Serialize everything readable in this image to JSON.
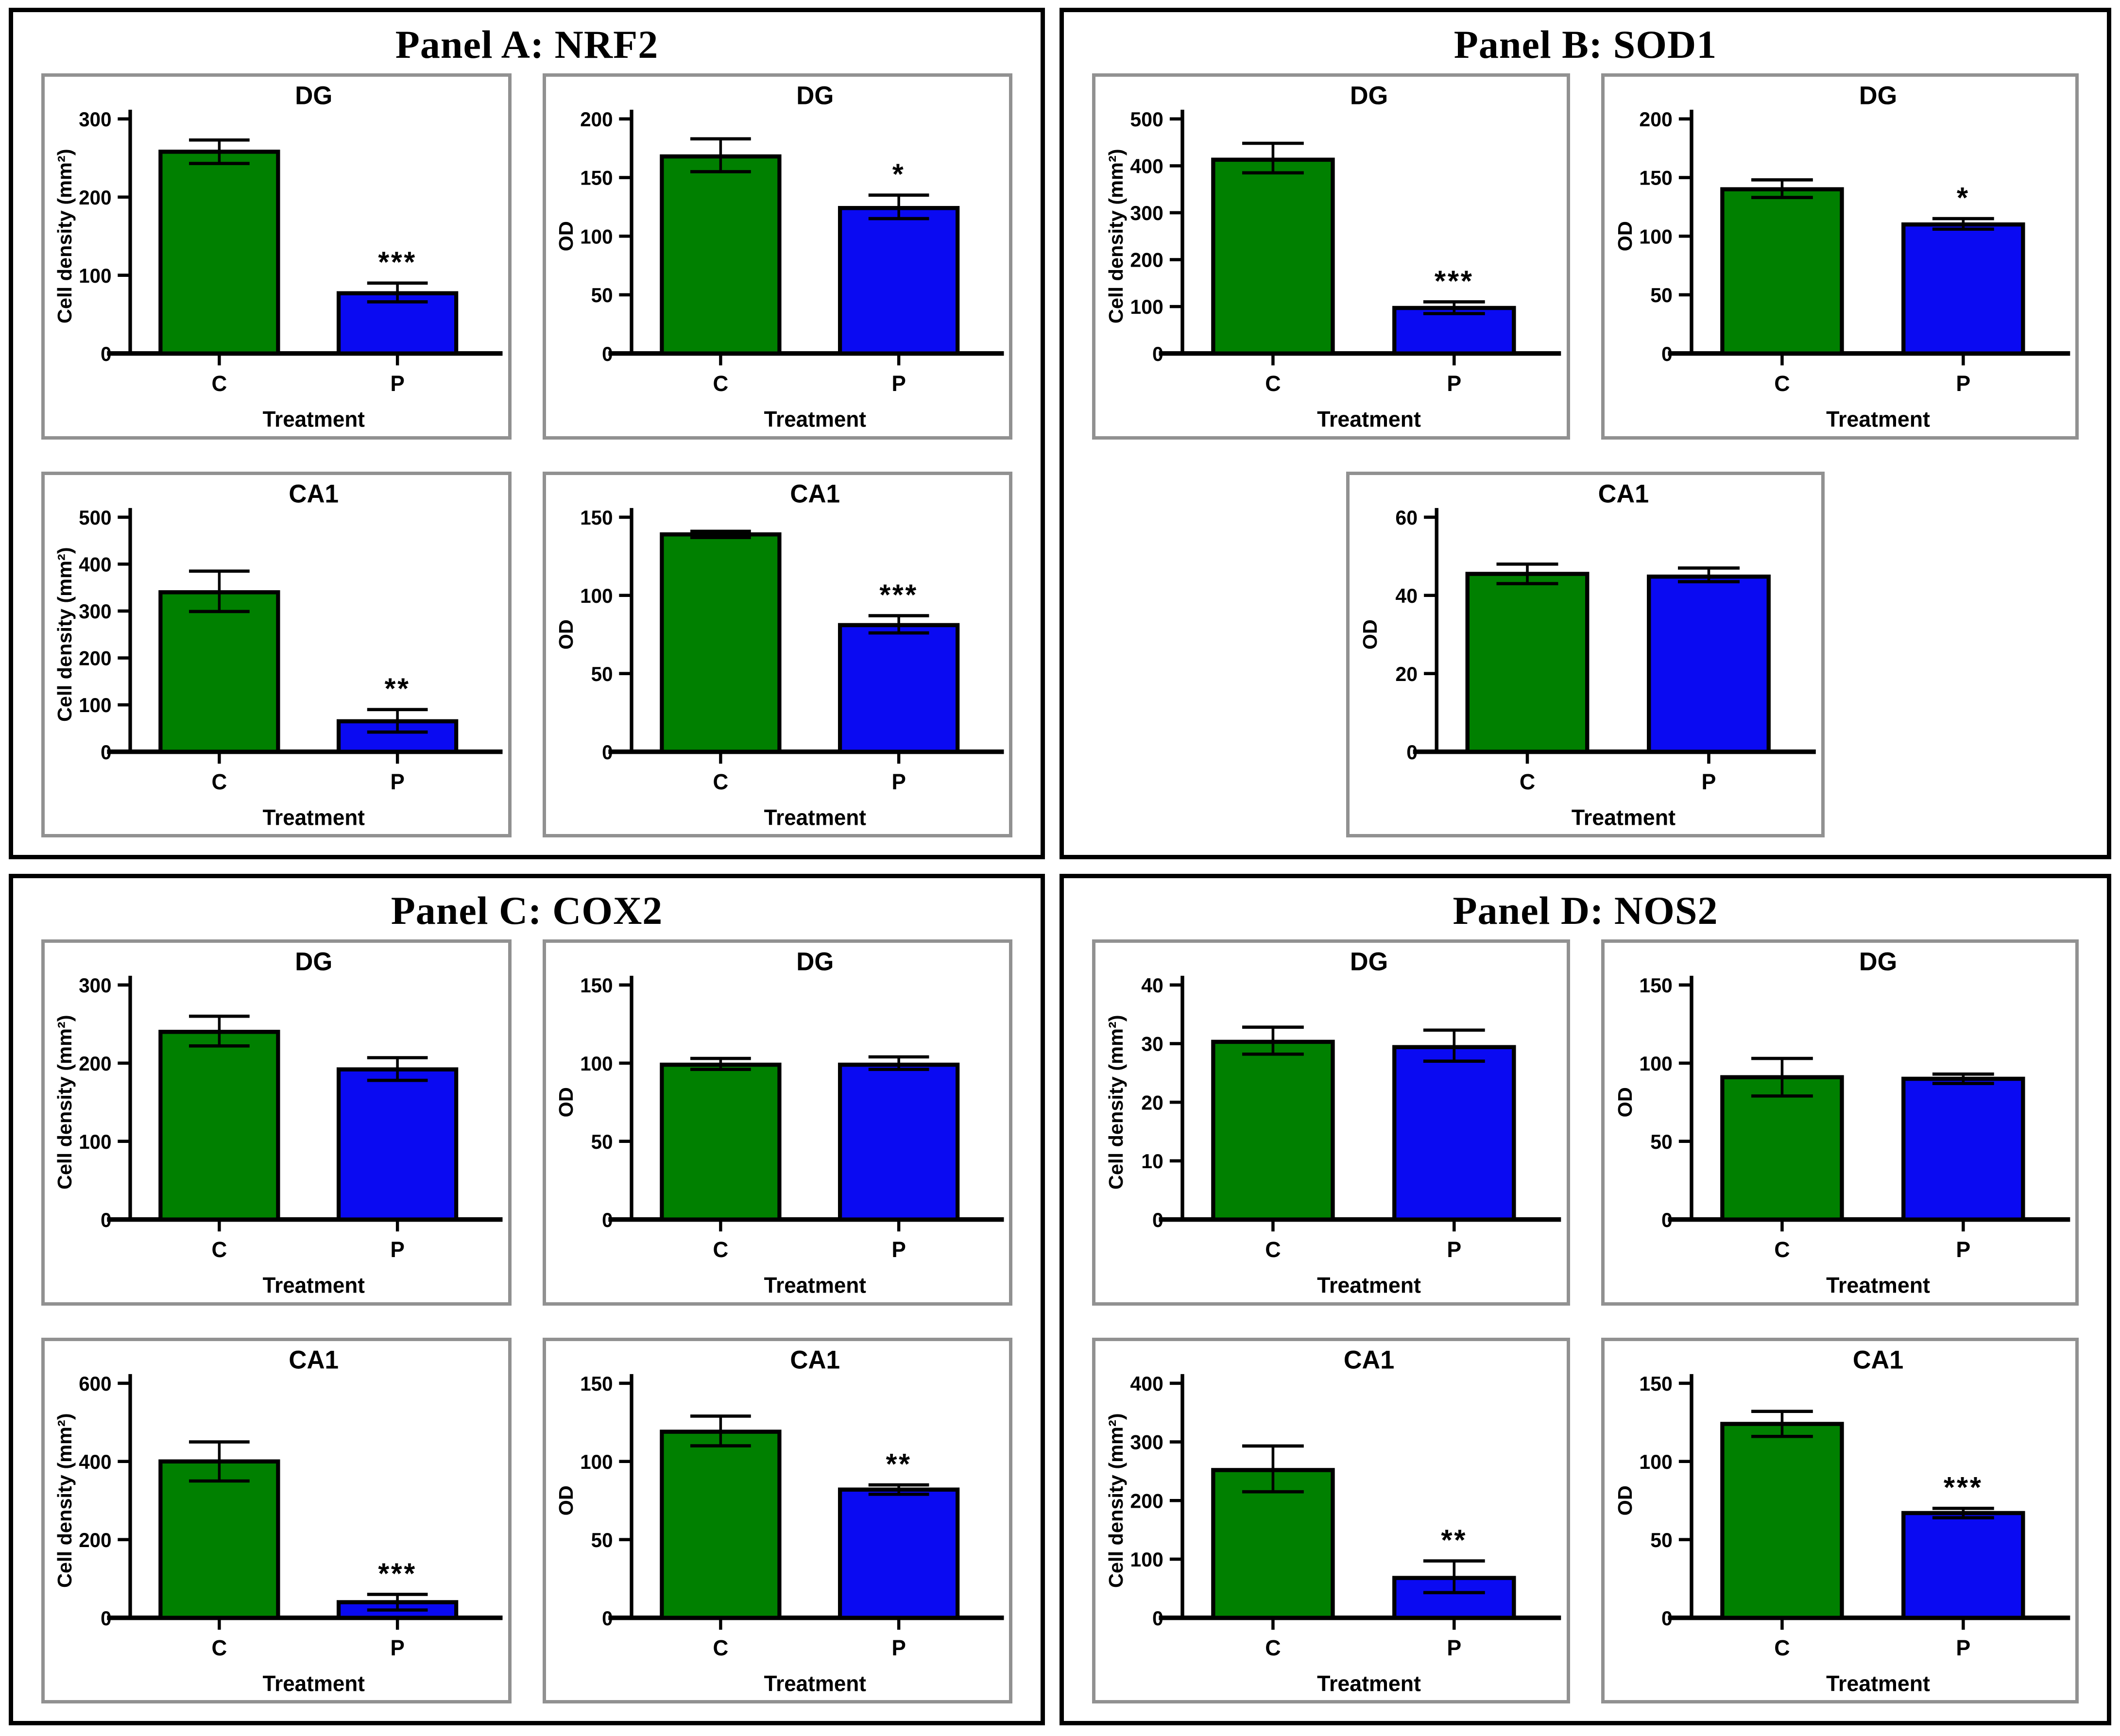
{
  "panels": [
    {
      "letter": "A",
      "title": "Panel A: NRF2"
    },
    {
      "letter": "B",
      "title": "Panel B: SOD1"
    },
    {
      "letter": "C",
      "title": "Panel C: COX2"
    },
    {
      "letter": "D",
      "title": "Panel D: NOS2"
    }
  ],
  "colors": {
    "control_green": "#008000",
    "treated_blue": "#0a0af2",
    "axis": "#000000",
    "card_border": "#919191"
  },
  "chart_data": [
    {
      "panel": "A",
      "type": "bar",
      "title": "DG",
      "ylabel": "Cell density (mm²)",
      "xlabel": "Treatment",
      "categories": [
        "C",
        "P"
      ],
      "values": [
        258,
        77
      ],
      "errors_low": [
        243,
        66
      ],
      "errors_high": [
        273,
        90
      ],
      "sig": [
        "",
        "***"
      ],
      "ylim": [
        0,
        300
      ],
      "yticks": [
        0,
        100,
        200,
        300
      ],
      "bar_colors": [
        "#008000",
        "#0a0af2"
      ]
    },
    {
      "panel": "A",
      "type": "bar",
      "title": "DG",
      "ylabel": "OD",
      "xlabel": "Treatment",
      "categories": [
        "C",
        "P"
      ],
      "values": [
        168,
        124
      ],
      "errors_low": [
        155,
        115
      ],
      "errors_high": [
        183,
        135
      ],
      "sig": [
        "",
        "*"
      ],
      "ylim": [
        0,
        200
      ],
      "yticks": [
        0,
        50,
        100,
        150,
        200
      ],
      "bar_colors": [
        "#008000",
        "#0a0af2"
      ]
    },
    {
      "panel": "A",
      "type": "bar",
      "title": "CA1",
      "ylabel": "Cell density (mm²)",
      "xlabel": "Treatment",
      "categories": [
        "C",
        "P"
      ],
      "values": [
        340,
        65
      ],
      "errors_low": [
        299,
        42
      ],
      "errors_high": [
        385,
        90
      ],
      "sig": [
        "",
        "**"
      ],
      "ylim": [
        0,
        500
      ],
      "yticks": [
        0,
        100,
        200,
        300,
        400,
        500
      ],
      "bar_colors": [
        "#008000",
        "#0a0af2"
      ]
    },
    {
      "panel": "A",
      "type": "bar",
      "title": "CA1",
      "ylabel": "OD",
      "xlabel": "Treatment",
      "categories": [
        "C",
        "P"
      ],
      "values": [
        139,
        81
      ],
      "errors_low": [
        137,
        76
      ],
      "errors_high": [
        141,
        87
      ],
      "sig": [
        "",
        "***"
      ],
      "ylim": [
        0,
        150
      ],
      "yticks": [
        0,
        50,
        100,
        150
      ],
      "bar_colors": [
        "#008000",
        "#0a0af2"
      ]
    },
    {
      "panel": "B",
      "type": "bar",
      "title": "DG",
      "ylabel": "Cell density (mm²)",
      "xlabel": "Treatment",
      "categories": [
        "C",
        "P"
      ],
      "values": [
        413,
        97
      ],
      "errors_low": [
        385,
        85
      ],
      "errors_high": [
        448,
        110
      ],
      "sig": [
        "",
        "***"
      ],
      "ylim": [
        0,
        500
      ],
      "yticks": [
        0,
        100,
        200,
        300,
        400,
        500
      ],
      "bar_colors": [
        "#008000",
        "#0a0af2"
      ]
    },
    {
      "panel": "B",
      "type": "bar",
      "title": "DG",
      "ylabel": "OD",
      "xlabel": "Treatment",
      "categories": [
        "C",
        "P"
      ],
      "values": [
        140,
        110
      ],
      "errors_low": [
        133,
        106
      ],
      "errors_high": [
        148,
        115
      ],
      "sig": [
        "",
        "*"
      ],
      "ylim": [
        0,
        200
      ],
      "yticks": [
        0,
        50,
        100,
        150,
        200
      ],
      "bar_colors": [
        "#008000",
        "#0a0af2"
      ]
    },
    {
      "panel": "B",
      "type": "bar",
      "title": "CA1",
      "ylabel": "OD",
      "xlabel": "Treatment",
      "categories": [
        "C",
        "P"
      ],
      "values": [
        45.5,
        44.8
      ],
      "errors_low": [
        43,
        43.5
      ],
      "errors_high": [
        48,
        47
      ],
      "sig": [
        "",
        ""
      ],
      "ylim": [
        0,
        60
      ],
      "yticks": [
        0,
        20,
        40,
        60
      ],
      "bar_colors": [
        "#008000",
        "#0a0af2"
      ]
    },
    {
      "panel": "C",
      "type": "bar",
      "title": "DG",
      "ylabel": "Cell density (mm²)",
      "xlabel": "Treatment",
      "categories": [
        "C",
        "P"
      ],
      "values": [
        240,
        192
      ],
      "errors_low": [
        222,
        178
      ],
      "errors_high": [
        260,
        207
      ],
      "sig": [
        "",
        ""
      ],
      "ylim": [
        0,
        300
      ],
      "yticks": [
        0,
        100,
        200,
        300
      ],
      "bar_colors": [
        "#008000",
        "#0a0af2"
      ]
    },
    {
      "panel": "C",
      "type": "bar",
      "title": "DG",
      "ylabel": "OD",
      "xlabel": "Treatment",
      "categories": [
        "C",
        "P"
      ],
      "values": [
        99,
        99
      ],
      "errors_low": [
        96,
        96
      ],
      "errors_high": [
        103,
        104
      ],
      "sig": [
        "",
        ""
      ],
      "ylim": [
        0,
        150
      ],
      "yticks": [
        0,
        50,
        100,
        150
      ],
      "bar_colors": [
        "#008000",
        "#0a0af2"
      ]
    },
    {
      "panel": "C",
      "type": "bar",
      "title": "CA1",
      "ylabel": "Cell density (mm²)",
      "xlabel": "Treatment",
      "categories": [
        "C",
        "P"
      ],
      "values": [
        400,
        40
      ],
      "errors_low": [
        350,
        20
      ],
      "errors_high": [
        450,
        60
      ],
      "sig": [
        "",
        "***"
      ],
      "ylim": [
        0,
        600
      ],
      "yticks": [
        0,
        200,
        400,
        600
      ],
      "bar_colors": [
        "#008000",
        "#0a0af2"
      ]
    },
    {
      "panel": "C",
      "type": "bar",
      "title": "CA1",
      "ylabel": "OD",
      "xlabel": "Treatment",
      "categories": [
        "C",
        "P"
      ],
      "values": [
        119,
        82
      ],
      "errors_low": [
        110,
        79
      ],
      "errors_high": [
        129,
        85
      ],
      "sig": [
        "",
        "**"
      ],
      "ylim": [
        0,
        150
      ],
      "yticks": [
        0,
        50,
        100,
        150
      ],
      "bar_colors": [
        "#008000",
        "#0a0af2"
      ]
    },
    {
      "panel": "D",
      "type": "bar",
      "title": "DG",
      "ylabel": "Cell density (mm²)",
      "xlabel": "Treatment",
      "categories": [
        "C",
        "P"
      ],
      "values": [
        30.3,
        29.4
      ],
      "errors_low": [
        28.2,
        27
      ],
      "errors_high": [
        32.8,
        32.3
      ],
      "sig": [
        "",
        ""
      ],
      "ylim": [
        0,
        40
      ],
      "yticks": [
        0,
        10,
        20,
        30,
        40
      ],
      "bar_colors": [
        "#008000",
        "#0a0af2"
      ]
    },
    {
      "panel": "D",
      "type": "bar",
      "title": "DG",
      "ylabel": "OD",
      "xlabel": "Treatment",
      "categories": [
        "C",
        "P"
      ],
      "values": [
        91,
        90
      ],
      "errors_low": [
        79,
        87
      ],
      "errors_high": [
        103,
        93
      ],
      "sig": [
        "",
        ""
      ],
      "ylim": [
        0,
        150
      ],
      "yticks": [
        0,
        50,
        100,
        150
      ],
      "bar_colors": [
        "#008000",
        "#0a0af2"
      ]
    },
    {
      "panel": "D",
      "type": "bar",
      "title": "CA1",
      "ylabel": "Cell density (mm²)",
      "xlabel": "Treatment",
      "categories": [
        "C",
        "P"
      ],
      "values": [
        252,
        68
      ],
      "errors_low": [
        215,
        43
      ],
      "errors_high": [
        293,
        97
      ],
      "sig": [
        "",
        "**"
      ],
      "ylim": [
        0,
        400
      ],
      "yticks": [
        0,
        100,
        200,
        300,
        400
      ],
      "bar_colors": [
        "#008000",
        "#0a0af2"
      ]
    },
    {
      "panel": "D",
      "type": "bar",
      "title": "CA1",
      "ylabel": "OD",
      "xlabel": "Treatment",
      "categories": [
        "C",
        "P"
      ],
      "values": [
        124,
        67
      ],
      "errors_low": [
        116,
        64
      ],
      "errors_high": [
        132,
        70
      ],
      "sig": [
        "",
        "***"
      ],
      "ylim": [
        0,
        150
      ],
      "yticks": [
        0,
        50,
        100,
        150
      ],
      "bar_colors": [
        "#008000",
        "#0a0af2"
      ]
    }
  ]
}
